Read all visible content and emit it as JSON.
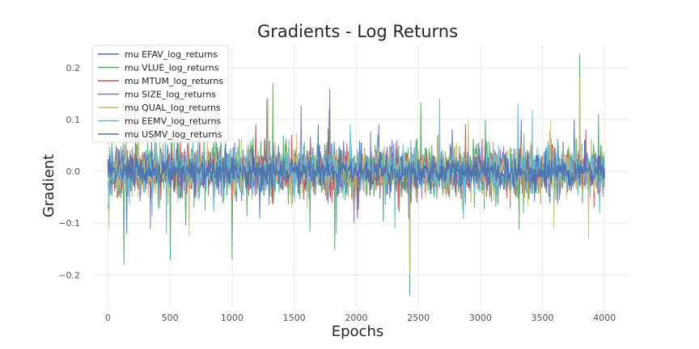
{
  "chart_data": {
    "type": "line",
    "title": "Gradients - Log Returns",
    "xlabel": "Epochs",
    "ylabel": "Gradient",
    "xlim": [
      -120,
      4200
    ],
    "ylim": [
      -0.265,
      0.245
    ],
    "x_ticks": [
      0,
      500,
      1000,
      1500,
      2000,
      2500,
      3000,
      3500,
      4000
    ],
    "x_tick_labels": [
      "0",
      "500",
      "1000",
      "1500",
      "2000",
      "2500",
      "3000",
      "3500",
      "4000"
    ],
    "y_ticks": [
      -0.2,
      -0.1,
      0.0,
      0.1,
      0.2
    ],
    "y_tick_labels": [
      "−0.2",
      "−0.1",
      "0.0",
      "0.1",
      "0.2"
    ],
    "grid": true,
    "legend_position": "top-left",
    "x_range_data": [
      0,
      4000
    ],
    "note_values": "Each series is a noisy gradient trace over 4000 epochs; individual values cannot be read from the figure, so each series is summarised by its approximate typical band and its visible extreme spikes (epoch, value).",
    "series": [
      {
        "name": "mu EFAV_log_returns",
        "color": "#4c72b0",
        "typical_abs": 0.03,
        "spikes": [
          [
            150,
            -0.12
          ],
          [
            560,
            0.08
          ],
          [
            1220,
            -0.09
          ],
          [
            2420,
            -0.09
          ],
          [
            3800,
            0.07
          ]
        ]
      },
      {
        "name": "mu VLUE_log_returns",
        "color": "#55a868",
        "typical_abs": 0.04,
        "spikes": [
          [
            130,
            -0.18
          ],
          [
            500,
            -0.17
          ],
          [
            1330,
            0.17
          ],
          [
            1000,
            -0.17
          ],
          [
            2430,
            -0.24
          ],
          [
            3800,
            0.225
          ],
          [
            1780,
            0.12
          ],
          [
            3950,
            0.11
          ],
          [
            220,
            0.13
          ],
          [
            870,
            0.13
          ]
        ]
      },
      {
        "name": "mu MTUM_log_returns",
        "color": "#c44e52",
        "typical_abs": 0.03,
        "spikes": [
          [
            1190,
            0.09
          ],
          [
            1480,
            0.07
          ],
          [
            2880,
            0.09
          ],
          [
            3850,
            0.08
          ],
          [
            2010,
            -0.09
          ]
        ]
      },
      {
        "name": "mu SIZE_log_returns",
        "color": "#8172b2",
        "typical_abs": 0.03,
        "spikes": [
          [
            340,
            -0.11
          ],
          [
            1280,
            0.14
          ],
          [
            2180,
            0.09
          ],
          [
            3330,
            0.1
          ],
          [
            1980,
            -0.1
          ]
        ]
      },
      {
        "name": "mu QUAL_log_returns",
        "color": "#ccb974",
        "typical_abs": 0.035,
        "spikes": [
          [
            10,
            -0.11
          ],
          [
            2430,
            -0.2
          ],
          [
            3800,
            0.18
          ],
          [
            3870,
            -0.13
          ],
          [
            2900,
            0.1
          ],
          [
            1290,
            0.14
          ],
          [
            3590,
            -0.11
          ]
        ]
      },
      {
        "name": "mu EEMV_log_returns",
        "color": "#64b5cd",
        "typical_abs": 0.035,
        "spikes": [
          [
            0,
            -0.065
          ],
          [
            470,
            -0.12
          ],
          [
            1840,
            -0.12
          ],
          [
            1950,
            0.09
          ],
          [
            2310,
            -0.11
          ],
          [
            3300,
            0.13
          ],
          [
            3960,
            -0.08
          ],
          [
            2670,
            0.14
          ]
        ]
      },
      {
        "name": "mu USMV_log_returns",
        "color": "#4c72b0",
        "typical_abs": 0.02,
        "spikes": [
          [
            2440,
            -0.06
          ],
          [
            3840,
            0.06
          ],
          [
            700,
            -0.05
          ],
          [
            1700,
            0.05
          ]
        ]
      }
    ]
  }
}
